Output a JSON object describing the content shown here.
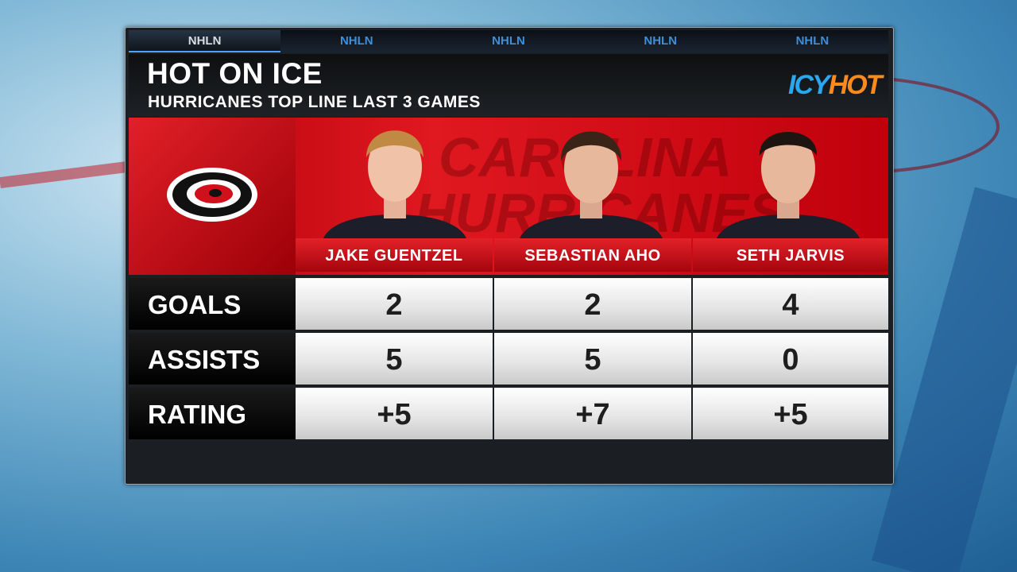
{
  "ticker": [
    "NHLN",
    "NHLN",
    "NHLN",
    "NHLN",
    "NHLN"
  ],
  "header": {
    "title": "HOT ON ICE",
    "subtitle": "HURRICANES TOP LINE LAST 3 GAMES"
  },
  "sponsor": {
    "parts": [
      "ICY",
      "HOT"
    ]
  },
  "watermark": [
    "CAROLINA",
    "HURRICANES"
  ],
  "table": {
    "columns": [
      "JAKE GUENTZEL",
      "SEBASTIAN AHO",
      "SETH JARVIS"
    ],
    "rows": [
      [
        "GOALS",
        "2",
        "2",
        "4"
      ],
      [
        "ASSISTS",
        "5",
        "5",
        "0"
      ],
      [
        "RATING",
        "+5",
        "+7",
        "+5"
      ]
    ]
  }
}
